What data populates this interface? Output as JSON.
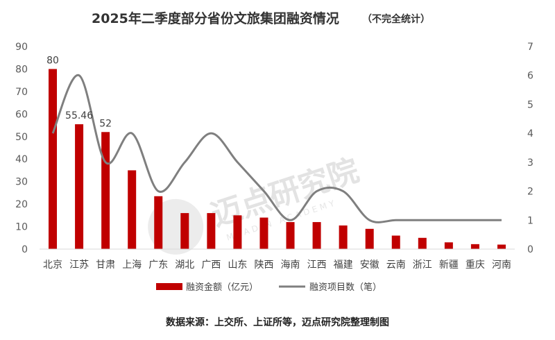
{
  "chart_data": {
    "type": "bar",
    "title": "2025年二季度部分省份文旅集团融资情况",
    "title_note": "（不完全统计）",
    "categories": [
      "北京",
      "江苏",
      "甘肃",
      "上海",
      "广东",
      "湖北",
      "广西",
      "山东",
      "陕西",
      "海南",
      "江西",
      "福建",
      "安徽",
      "云南",
      "浙江",
      "新疆",
      "重庆",
      "河南"
    ],
    "series": [
      {
        "name": "融资金额（亿元）",
        "type": "bar",
        "axis": "left",
        "color": "#c00000",
        "values": [
          80,
          55.46,
          52,
          35,
          23.5,
          16,
          16,
          15,
          14,
          12,
          12,
          10.5,
          9,
          6,
          5,
          3,
          2.2,
          2
        ],
        "labels": [
          "80",
          "55.46",
          "52"
        ]
      },
      {
        "name": "融资项目数（笔）",
        "type": "line",
        "axis": "right",
        "color": "#7f7f7f",
        "smooth": true,
        "values": [
          4,
          6,
          3,
          4,
          2,
          3,
          4,
          3,
          2,
          1,
          2,
          2,
          1,
          1,
          1,
          1,
          1,
          1
        ]
      }
    ],
    "y_left": {
      "min": 0,
      "max": 90,
      "step": 10,
      "ticks": [
        "0",
        "10",
        "20",
        "30",
        "40",
        "50",
        "60",
        "70",
        "80",
        "90"
      ]
    },
    "y_right": {
      "min": 0,
      "max": 7,
      "step": 1,
      "ticks": [
        "0",
        "1",
        "2",
        "3",
        "4",
        "5",
        "6",
        "7"
      ]
    },
    "grid": false,
    "legend_position": "bottom"
  },
  "source": "数据来源：上交所、上证所等，迈点研究院整理制图",
  "watermark": {
    "text": "迈点研究院",
    "sub": "MEADIN ACADEMY"
  }
}
